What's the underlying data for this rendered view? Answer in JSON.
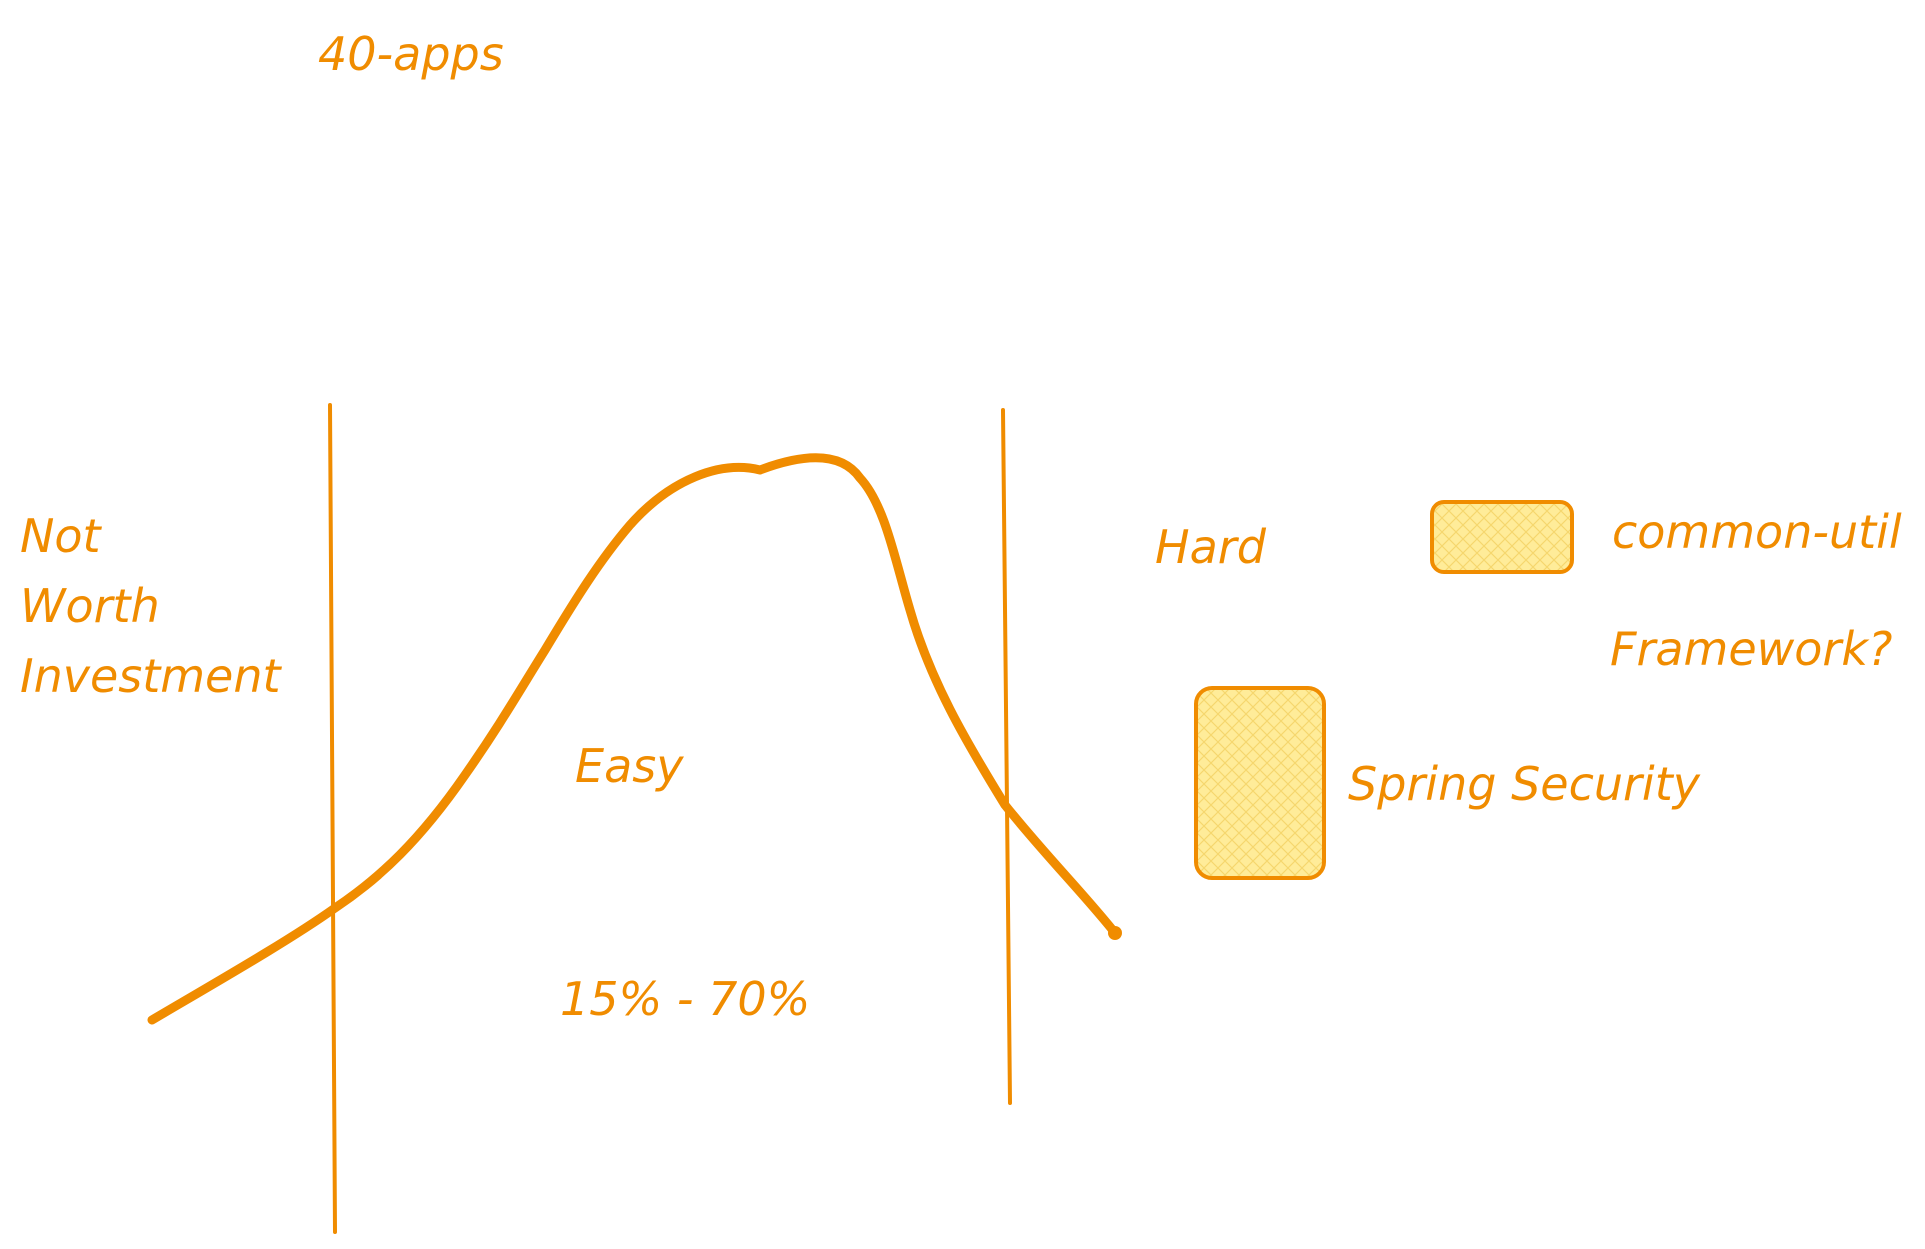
{
  "colors": {
    "stroke": "#f08c00",
    "fill": "#ffec99",
    "background": "#ffffff"
  },
  "labels": {
    "title": "40-apps",
    "not_worth_line1": "Not",
    "not_worth_line2": "Worth",
    "not_worth_line3": "Investment",
    "easy": "Easy",
    "range": "15% - 70%",
    "hard": "Hard",
    "common_util": "common-util",
    "framework": "Framework?",
    "spring_security": "Spring Security"
  }
}
